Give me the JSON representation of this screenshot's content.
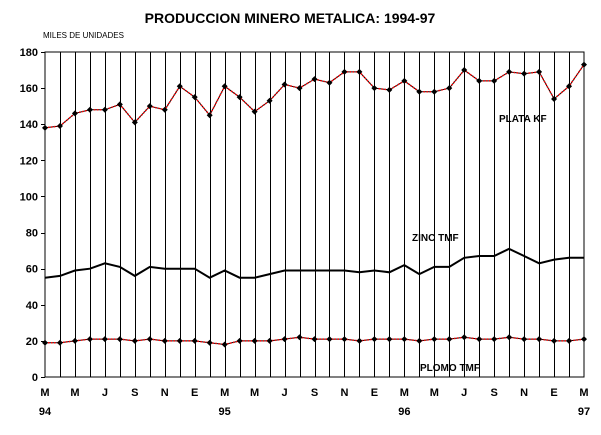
{
  "chart_data": {
    "type": "line",
    "title": "PRODUCCION MINERO METALICA: 1994-97",
    "ylabel": "MILES DE UNIDADES",
    "ylim": [
      0,
      180
    ],
    "yticks": [
      0,
      20,
      40,
      60,
      80,
      100,
      120,
      140,
      160,
      180
    ],
    "grid": "vertical",
    "x_month_labels": [
      "M",
      "M",
      "J",
      "S",
      "N",
      "E",
      "M",
      "M",
      "J",
      "S",
      "N",
      "E",
      "M",
      "M",
      "J",
      "S",
      "N",
      "E",
      "M"
    ],
    "x_year_labels": [
      {
        "label": "94",
        "at": 0
      },
      {
        "label": "95",
        "at": 6
      },
      {
        "label": "96",
        "at": 12
      },
      {
        "label": "97",
        "at": 18
      }
    ],
    "series": [
      {
        "name": "PLATA KF",
        "color": "#ff0000",
        "line_style": "dotted",
        "marker": "diamond",
        "values": [
          138,
          139,
          146,
          148,
          148,
          151,
          141,
          150,
          148,
          161,
          155,
          145,
          161,
          155,
          147,
          153,
          162,
          160,
          165,
          163,
          169,
          169,
          160,
          159,
          164,
          158,
          158,
          160,
          170,
          164,
          164,
          169,
          168,
          169,
          154,
          161,
          173
        ]
      },
      {
        "name": "ZINC TMF",
        "color": "#000000",
        "line_style": "solid",
        "marker": "none",
        "values": [
          55,
          56,
          59,
          60,
          63,
          61,
          56,
          61,
          60,
          60,
          60,
          55,
          59,
          55,
          55,
          57,
          59,
          59,
          59,
          59,
          59,
          58,
          59,
          58,
          62,
          57,
          61,
          61,
          66,
          67,
          67,
          71,
          67,
          63,
          65,
          66,
          66
        ]
      },
      {
        "name": "PLOMO TMF",
        "color": "#ff0000",
        "line_style": "dotted",
        "marker": "diamond",
        "values": [
          19,
          19,
          20,
          21,
          21,
          21,
          20,
          21,
          20,
          20,
          20,
          19,
          18,
          20,
          20,
          20,
          21,
          22,
          21,
          21,
          21,
          20,
          21,
          21,
          21,
          20,
          21,
          21,
          22,
          21,
          21,
          22,
          21,
          21,
          20,
          20,
          21
        ]
      }
    ]
  }
}
